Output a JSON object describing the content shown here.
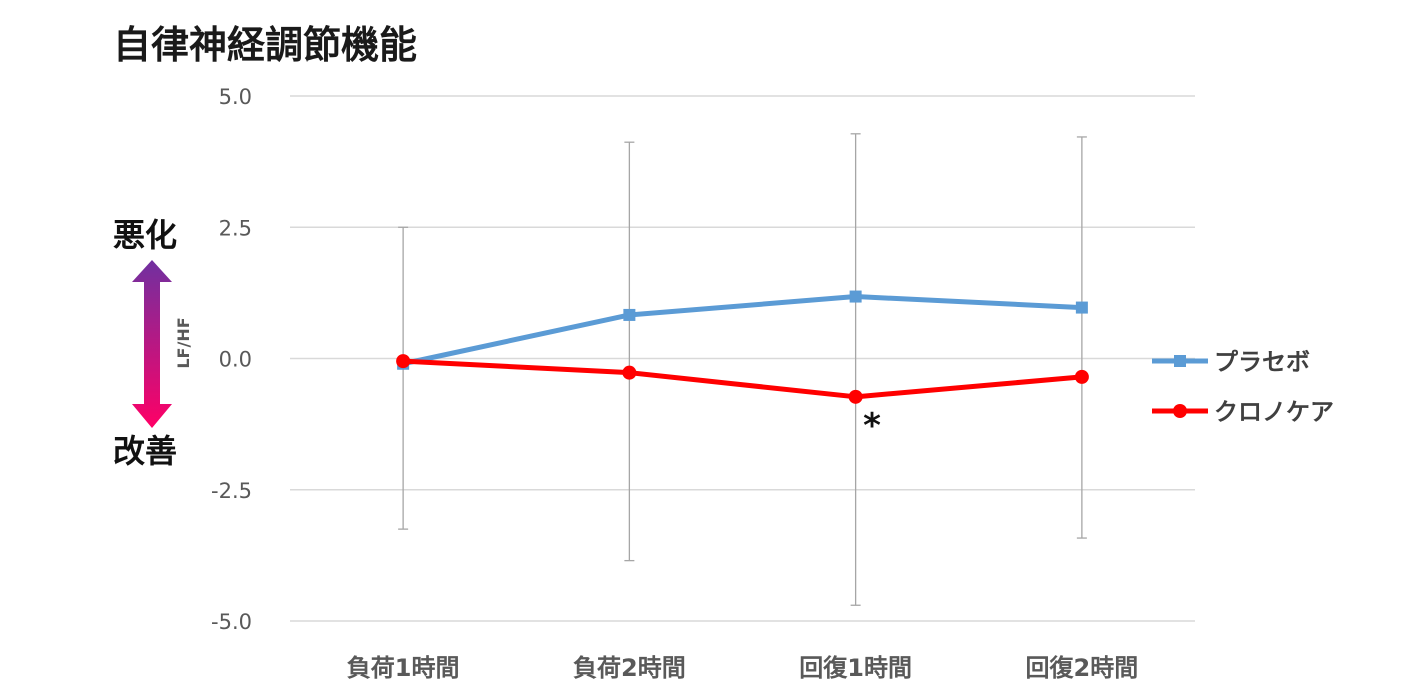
{
  "chart_data": {
    "type": "line",
    "title": "自律神経調節機能",
    "ylabel": "LF/HF",
    "ylim": [
      -5.0,
      5.0
    ],
    "yticks": [
      "5.0",
      "2.5",
      "0.0",
      "-2.5",
      "-5.0"
    ],
    "grid": true,
    "legend": "right",
    "categories": [
      "負荷1時間",
      "負荷2時間",
      "回復1時間",
      "回復2時間"
    ],
    "series": [
      {
        "name": "プラセボ",
        "color": "#5b9bd5",
        "marker": "square",
        "values": [
          -0.1,
          0.83,
          1.18,
          0.97
        ],
        "error_bars": [
          [
            -3.25,
            2.5
          ],
          [
            -3.85,
            4.12
          ],
          [
            -4.7,
            4.28
          ],
          [
            -3.42,
            4.22
          ]
        ]
      },
      {
        "name": "クロノケア",
        "color": "#ff0000",
        "marker": "circle",
        "values": [
          -0.05,
          -0.27,
          -0.73,
          -0.35
        ]
      }
    ],
    "annotations": {
      "significance": "*",
      "worse_label": "悪化",
      "better_label": "改善"
    }
  }
}
